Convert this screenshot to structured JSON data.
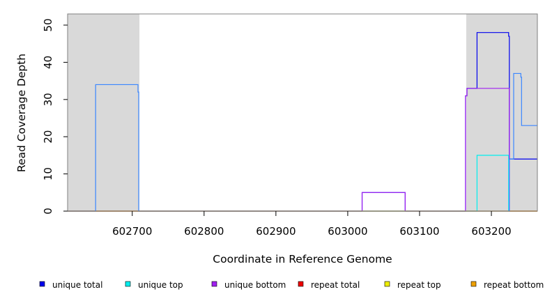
{
  "chart_data": {
    "type": "line",
    "title": "",
    "xlabel": "Coordinate in Reference Genome",
    "ylabel": "Read Coverage Depth",
    "xlim": [
      602610,
      603264
    ],
    "ylim": [
      0,
      53
    ],
    "grid": false,
    "x_ticks": [
      602700,
      602800,
      602900,
      603000,
      603100,
      603200
    ],
    "x_tick_labels": [
      "602700",
      "602800",
      "602900",
      "603000",
      "603100",
      "603200"
    ],
    "y_ticks": [
      0,
      10,
      20,
      30,
      40,
      50
    ],
    "y_tick_labels": [
      "0",
      "10",
      "20",
      "30",
      "40",
      "50"
    ],
    "shaded_regions": [
      {
        "start": 602610,
        "end": 602710,
        "color": "#d9d9d9"
      },
      {
        "start": 603165,
        "end": 603264,
        "color": "#d9d9d9"
      }
    ],
    "series": [
      {
        "name": "unique total",
        "color": "#0000ee",
        "points": [
          [
            602610,
            0
          ],
          [
            603020,
            0
          ],
          [
            603020,
            5
          ],
          [
            603080,
            5
          ],
          [
            603080,
            0
          ],
          [
            603164,
            0
          ],
          [
            603164,
            31
          ],
          [
            603166,
            31
          ],
          [
            603166,
            33
          ],
          [
            603180,
            33
          ],
          [
            603180,
            48
          ],
          [
            603224,
            48
          ],
          [
            603224,
            47
          ],
          [
            603225,
            47
          ],
          [
            603225,
            14
          ],
          [
            603264,
            14
          ]
        ]
      },
      {
        "name": "unique top",
        "color": "#00eeee",
        "points": [
          [
            602610,
            0
          ],
          [
            603180,
            0
          ],
          [
            603180,
            15
          ],
          [
            603224,
            15
          ],
          [
            603224,
            0
          ],
          [
            603264,
            0
          ]
        ]
      },
      {
        "name": "unique bottom",
        "color": "#a020f0",
        "points": [
          [
            602610,
            0
          ],
          [
            603020,
            0
          ],
          [
            603020,
            5
          ],
          [
            603080,
            5
          ],
          [
            603080,
            0
          ],
          [
            603164,
            0
          ],
          [
            603164,
            31
          ],
          [
            603166,
            31
          ],
          [
            603166,
            33
          ],
          [
            603225,
            33
          ],
          [
            603225,
            0
          ],
          [
            603264,
            0
          ]
        ]
      },
      {
        "name": "repeat total",
        "color": "#ee0000",
        "points": [
          [
            602610,
            0
          ],
          [
            603264,
            0
          ]
        ]
      },
      {
        "name": "repeat top",
        "color": "#eeee00",
        "points": [
          [
            602610,
            0
          ],
          [
            603264,
            0
          ]
        ]
      },
      {
        "name": "repeat bottom",
        "color": "#eea000",
        "points": [
          [
            602610,
            0
          ],
          [
            603264,
            0
          ]
        ]
      },
      {
        "name": "",
        "color": "#3a86ff",
        "points": [
          [
            602610,
            0
          ],
          [
            602649,
            0
          ],
          [
            602649,
            34
          ],
          [
            602708,
            34
          ],
          [
            602708,
            32
          ],
          [
            602709,
            32
          ],
          [
            602709,
            0
          ],
          [
            603225,
            0
          ],
          [
            603225,
            14
          ],
          [
            603231,
            14
          ],
          [
            603231,
            37
          ],
          [
            603241,
            37
          ],
          [
            603241,
            36
          ],
          [
            603242,
            36
          ],
          [
            603242,
            23
          ],
          [
            603264,
            23
          ]
        ]
      }
    ],
    "legend": {
      "placement": "bottom",
      "entries": [
        {
          "label": "unique total",
          "color": "#0000ee"
        },
        {
          "label": "unique top",
          "color": "#00eeee"
        },
        {
          "label": "unique bottom",
          "color": "#a020f0"
        },
        {
          "label": "repeat total",
          "color": "#ee0000"
        },
        {
          "label": "repeat top",
          "color": "#eeee00"
        },
        {
          "label": "repeat bottom",
          "color": "#eea000"
        }
      ]
    }
  }
}
